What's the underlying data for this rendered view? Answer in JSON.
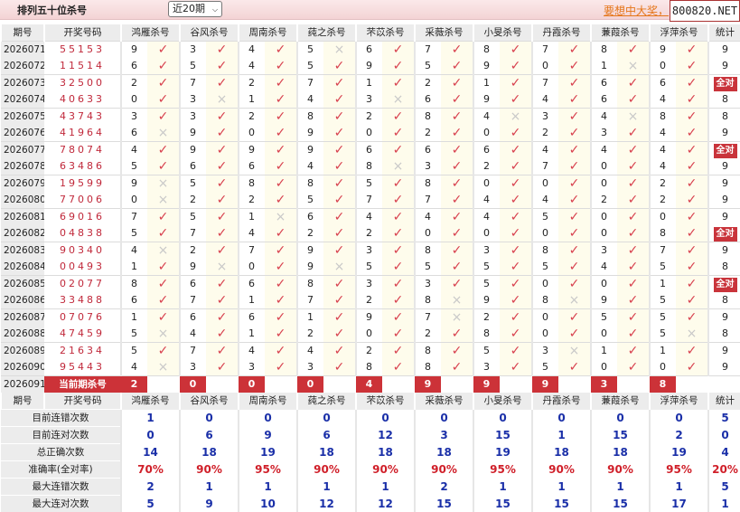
{
  "header": {
    "title": "排列五十位杀号",
    "period_select": "近20期",
    "promo_link": "要想中大奖，",
    "logo_text": "800820.NET"
  },
  "columns": {
    "issue": "期号",
    "code": "开奖号码",
    "experts": [
      "鸿雁杀号",
      "谷风杀号",
      "周南杀号",
      "莼之杀号",
      "芣苡杀号",
      "采薇杀号",
      "小旻杀号",
      "丹霞杀号",
      "蒹葭杀号",
      "浮萍杀号"
    ],
    "stat": "统计"
  },
  "rows": [
    {
      "issue": "2026071",
      "code": "55153",
      "picks": "9345678789",
      "hits": "1110111111",
      "stat": "9"
    },
    {
      "issue": "2026072",
      "code": "11514",
      "picks": "6545959010",
      "hits": "1111111101",
      "stat": "9"
    },
    {
      "issue": "2026073",
      "code": "32500",
      "picks": "2727121766",
      "hits": "1111111111",
      "stat": "全对"
    },
    {
      "issue": "2026074",
      "code": "40633",
      "picks": "0314369464",
      "hits": "1011011111",
      "stat": "8"
    },
    {
      "issue": "2026075",
      "code": "43743",
      "picks": "3328284348",
      "hits": "1111110101",
      "stat": "8"
    },
    {
      "issue": "2026076",
      "code": "41964",
      "picks": "6909020234",
      "hits": "0111111111",
      "stat": "9"
    },
    {
      "issue": "2026077",
      "code": "78074",
      "picks": "4999666444",
      "hits": "1111111111",
      "stat": "全对"
    },
    {
      "issue": "2026078",
      "code": "63486",
      "picks": "5664832704",
      "hits": "1111011111",
      "stat": "9"
    },
    {
      "issue": "2026079",
      "code": "19599",
      "picks": "9588580002",
      "hits": "0111111111",
      "stat": "9"
    },
    {
      "issue": "2026080",
      "code": "77006",
      "picks": "0225774422",
      "hits": "0111111111",
      "stat": "9"
    },
    {
      "issue": "2026081",
      "code": "69016",
      "picks": "7516444500",
      "hits": "1101111111",
      "stat": "9"
    },
    {
      "issue": "2026082",
      "code": "04838",
      "picks": "5742200008",
      "hits": "1111111111",
      "stat": "全对"
    },
    {
      "issue": "2026083",
      "code": "90340",
      "picks": "4279383837",
      "hits": "0111111111",
      "stat": "9"
    },
    {
      "issue": "2026084",
      "code": "00493",
      "picks": "1909555545",
      "hits": "1010111111",
      "stat": "8"
    },
    {
      "issue": "2026085",
      "code": "02077",
      "picks": "8668335001",
      "hits": "1111111111",
      "stat": "全对"
    },
    {
      "issue": "2026086",
      "code": "33488",
      "picks": "6717289895",
      "hits": "1111101011",
      "stat": "8"
    },
    {
      "issue": "2026087",
      "code": "07076",
      "picks": "1661972055",
      "hits": "1111101111",
      "stat": "9"
    },
    {
      "issue": "2026088",
      "code": "47459",
      "picks": "5412028005",
      "hits": "0111111110",
      "stat": "8"
    },
    {
      "issue": "2026089",
      "code": "21634",
      "picks": "5744285311",
      "hits": "1111111011",
      "stat": "9"
    },
    {
      "issue": "2026090",
      "code": "95443",
      "picks": "4333883500",
      "hits": "0111111111",
      "stat": "9"
    }
  ],
  "current": {
    "issue": "2026091",
    "label": "当前期杀号",
    "picks": [
      "2",
      "0",
      "0",
      "0",
      "4",
      "9",
      "9",
      "9",
      "3",
      "8"
    ]
  },
  "summary": [
    {
      "label": "目前连错次数",
      "values": [
        "1",
        "0",
        "0",
        "0",
        "0",
        "0",
        "0",
        "0",
        "0",
        "0",
        "5"
      ]
    },
    {
      "label": "目前连对次数",
      "values": [
        "0",
        "6",
        "9",
        "6",
        "12",
        "3",
        "15",
        "1",
        "15",
        "2",
        "0"
      ]
    },
    {
      "label": "总正确次数",
      "values": [
        "14",
        "18",
        "19",
        "18",
        "18",
        "18",
        "19",
        "18",
        "18",
        "19",
        "4"
      ]
    },
    {
      "label": "准确率(全对率)",
      "values": [
        "70%",
        "90%",
        "95%",
        "90%",
        "90%",
        "90%",
        "95%",
        "90%",
        "90%",
        "95%",
        "20%"
      ],
      "pct": true
    },
    {
      "label": "最大连错次数",
      "values": [
        "2",
        "1",
        "1",
        "1",
        "1",
        "2",
        "1",
        "1",
        "1",
        "1",
        "5"
      ]
    },
    {
      "label": "最大连对次数",
      "values": [
        "5",
        "9",
        "10",
        "12",
        "12",
        "15",
        "15",
        "15",
        "15",
        "17",
        "1"
      ]
    }
  ],
  "icons": {
    "hit": "check-icon",
    "miss": "cross-icon"
  },
  "colors": {
    "hit": "#d8404e",
    "miss": "#c8c8c8",
    "accent": "#cc3238",
    "summary_value": "#1a2fa8",
    "percent": "#d0202a"
  }
}
